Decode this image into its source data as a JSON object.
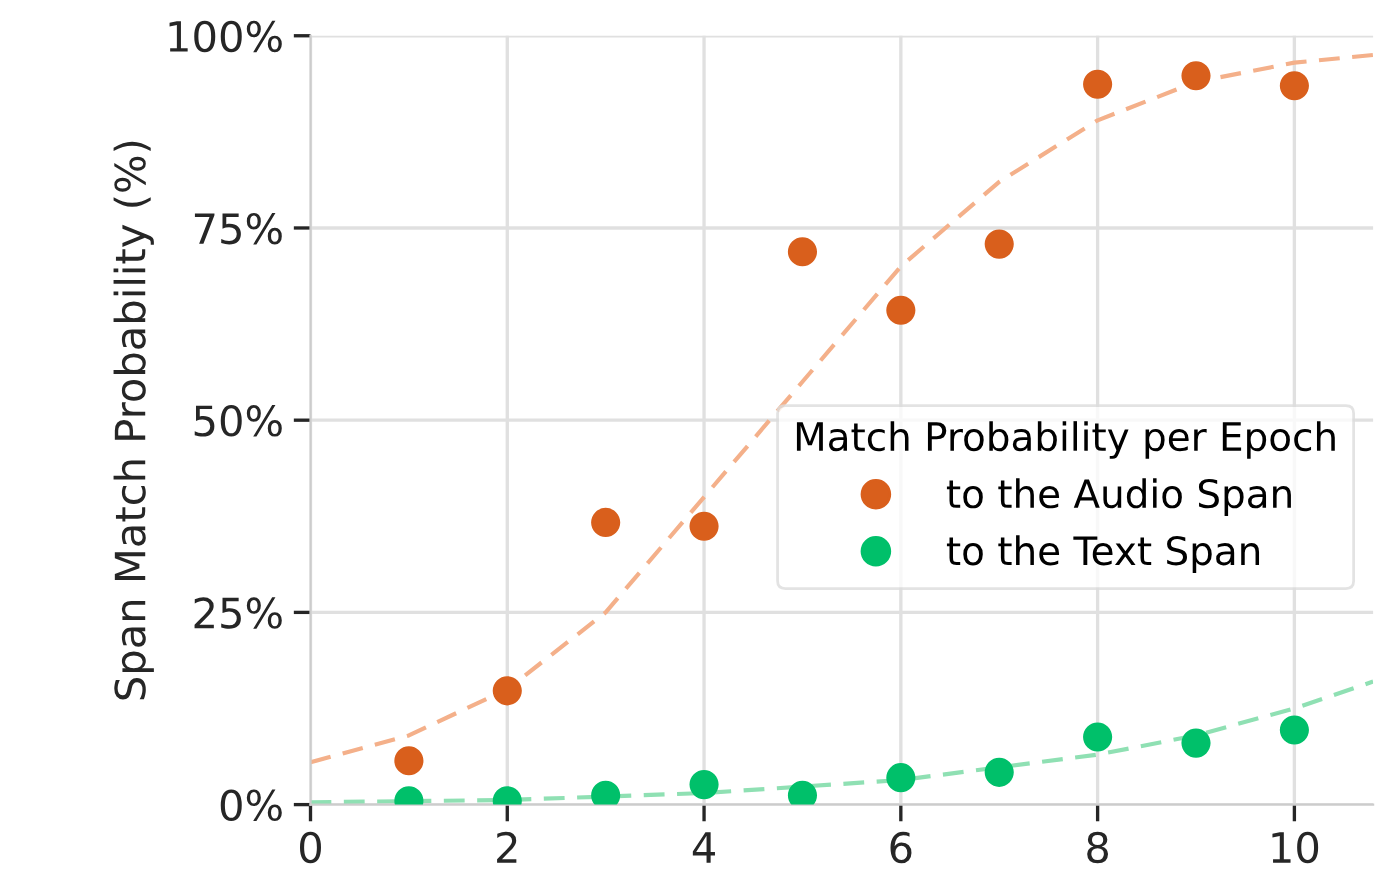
{
  "chart_data": {
    "type": "scatter",
    "ylabel": "Span Match Probability (%)",
    "legend_title": "Match Probability per Epoch",
    "xlim": [
      0,
      10.8
    ],
    "xticks": [
      0,
      2,
      4,
      6,
      8,
      10
    ],
    "ylim": [
      0,
      100
    ],
    "yticks": [
      {
        "value": 0,
        "label": "0%"
      },
      {
        "value": 25,
        "label": "25%"
      },
      {
        "value": 50,
        "label": "50%"
      },
      {
        "value": 75,
        "label": "75%"
      },
      {
        "value": 100,
        "label": "100%"
      }
    ],
    "grid": true,
    "legend": "right",
    "marker": "circle",
    "series": [
      {
        "name": "to the Audio Span",
        "color": "#d95f1c",
        "x": [
          1,
          2,
          3,
          4,
          5,
          6,
          7,
          8,
          9,
          10
        ],
        "values": [
          5.7,
          14.8,
          36.7,
          36.2,
          71.9,
          64.3,
          72.9,
          93.7,
          94.8,
          93.5
        ]
      },
      {
        "name": "to the Text Span",
        "color": "#00c06a",
        "x": [
          1,
          2,
          3,
          4,
          5,
          6,
          7,
          8,
          9,
          10
        ],
        "values": [
          0.5,
          0.5,
          1.2,
          2.6,
          1.2,
          3.5,
          4.2,
          8.8,
          8.0,
          9.7
        ]
      },
      {
        "type": "line",
        "color": "#f4b08a",
        "line_style": "dashed",
        "marker": "none",
        "x": [
          0,
          1,
          2,
          3,
          4,
          5,
          6,
          7,
          8,
          9,
          10,
          10.8
        ],
        "values": [
          5.5,
          9,
          15,
          25,
          40,
          55,
          70,
          81,
          89,
          94,
          96.5,
          97.5
        ]
      },
      {
        "type": "line",
        "color": "#8fe0b3",
        "line_style": "dashed",
        "marker": "none",
        "x": [
          0,
          2,
          4,
          6,
          8,
          9,
          10,
          10.8
        ],
        "values": [
          0.3,
          0.6,
          1.5,
          3.2,
          6.5,
          9,
          12.5,
          16
        ]
      }
    ]
  }
}
